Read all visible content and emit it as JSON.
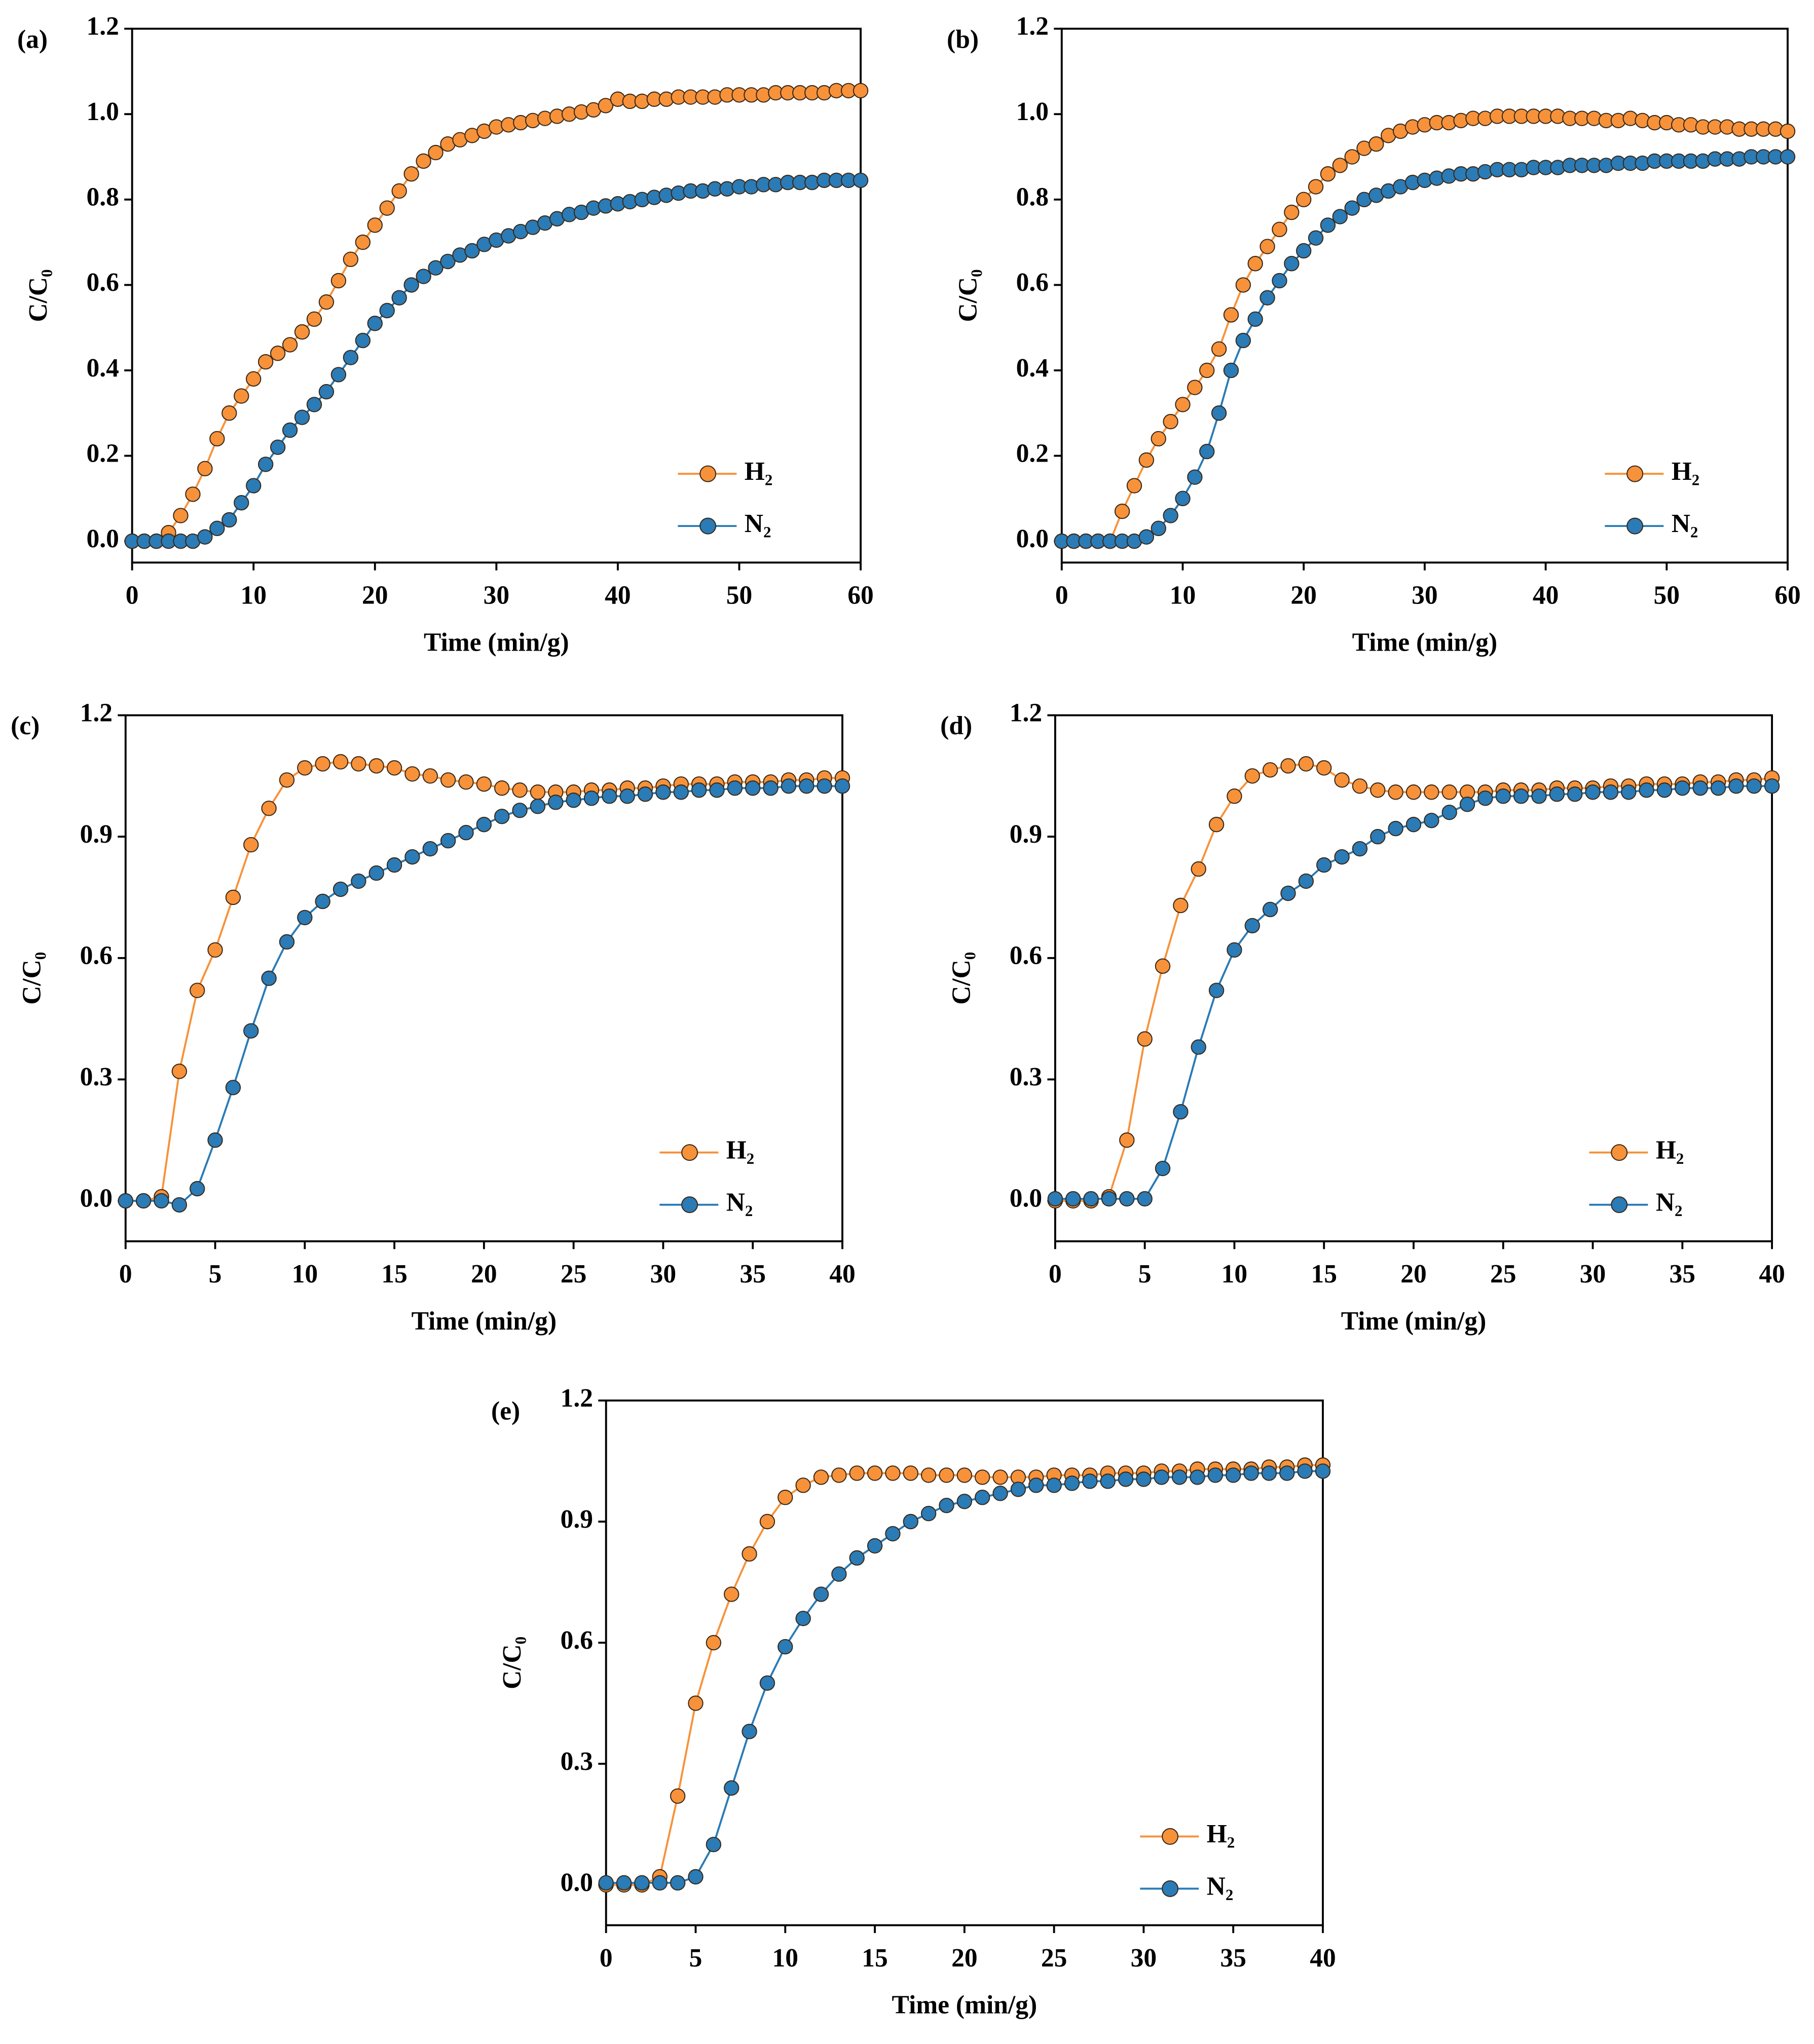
{
  "chart_data": [
    {
      "type": "line",
      "label": "(a)",
      "xlabel": "Time (min/g)",
      "ylabel": "C/C₀",
      "x": [
        0,
        1,
        2,
        3,
        4,
        5,
        6,
        7,
        8,
        9,
        10,
        11,
        12,
        13,
        14,
        15,
        16,
        17,
        18,
        19,
        20,
        21,
        22,
        23,
        24,
        25,
        26,
        27,
        28,
        29,
        30,
        31,
        32,
        33,
        34,
        35,
        36,
        37,
        38,
        39,
        40,
        41,
        42,
        43,
        44,
        45,
        46,
        47,
        48,
        49,
        50,
        51,
        52,
        53,
        54,
        55,
        56,
        57,
        58,
        59,
        60
      ],
      "series": [
        {
          "name": "H₂",
          "color": "#f7923a",
          "values": [
            0,
            0,
            0,
            0.02,
            0.06,
            0.11,
            0.17,
            0.24,
            0.3,
            0.34,
            0.38,
            0.42,
            0.44,
            0.46,
            0.49,
            0.52,
            0.56,
            0.61,
            0.66,
            0.7,
            0.74,
            0.78,
            0.82,
            0.86,
            0.89,
            0.91,
            0.93,
            0.94,
            0.95,
            0.96,
            0.97,
            0.975,
            0.98,
            0.985,
            0.99,
            0.995,
            1.0,
            1.005,
            1.01,
            1.02,
            1.035,
            1.03,
            1.03,
            1.035,
            1.035,
            1.04,
            1.04,
            1.04,
            1.04,
            1.045,
            1.045,
            1.045,
            1.045,
            1.05,
            1.05,
            1.05,
            1.05,
            1.05,
            1.055,
            1.055,
            1.055
          ]
        },
        {
          "name": "N₂",
          "color": "#2a7bb6",
          "values": [
            0,
            0,
            0,
            0,
            0,
            0,
            0.01,
            0.03,
            0.05,
            0.09,
            0.13,
            0.18,
            0.22,
            0.26,
            0.29,
            0.32,
            0.35,
            0.39,
            0.43,
            0.47,
            0.51,
            0.54,
            0.57,
            0.6,
            0.62,
            0.64,
            0.655,
            0.67,
            0.68,
            0.695,
            0.705,
            0.715,
            0.725,
            0.735,
            0.745,
            0.755,
            0.765,
            0.77,
            0.78,
            0.785,
            0.79,
            0.795,
            0.8,
            0.805,
            0.81,
            0.815,
            0.82,
            0.82,
            0.825,
            0.825,
            0.83,
            0.83,
            0.835,
            0.835,
            0.84,
            0.84,
            0.84,
            0.845,
            0.845,
            0.845,
            0.845
          ]
        }
      ],
      "xlim": [
        0,
        60
      ],
      "ylim": [
        -0.05,
        1.2
      ],
      "xticks": [
        0,
        10,
        20,
        30,
        40,
        50,
        60
      ],
      "yticks": [
        {
          "value": 0,
          "label": "0.0"
        },
        0.2,
        0.4,
        0.6,
        0.8,
        {
          "value": 1,
          "label": "1.0"
        },
        1.2
      ]
    },
    {
      "type": "line",
      "label": "(b)",
      "xlabel": "Time (min/g)",
      "ylabel": "C/C₀",
      "x": [
        0,
        1,
        2,
        3,
        4,
        5,
        6,
        7,
        8,
        9,
        10,
        11,
        12,
        13,
        14,
        15,
        16,
        17,
        18,
        19,
        20,
        21,
        22,
        23,
        24,
        25,
        26,
        27,
        28,
        29,
        30,
        31,
        32,
        33,
        34,
        35,
        36,
        37,
        38,
        39,
        40,
        41,
        42,
        43,
        44,
        45,
        46,
        47,
        48,
        49,
        50,
        51,
        52,
        53,
        54,
        55,
        56,
        57,
        58,
        59,
        60
      ],
      "series": [
        {
          "name": "H₂",
          "color": "#f7923a",
          "values": [
            0,
            0,
            0,
            0,
            0,
            0.07,
            0.13,
            0.19,
            0.24,
            0.28,
            0.32,
            0.36,
            0.4,
            0.45,
            0.53,
            0.6,
            0.65,
            0.69,
            0.73,
            0.77,
            0.8,
            0.83,
            0.86,
            0.88,
            0.9,
            0.92,
            0.93,
            0.95,
            0.96,
            0.97,
            0.975,
            0.98,
            0.98,
            0.985,
            0.99,
            0.99,
            0.995,
            0.995,
            0.995,
            0.995,
            0.995,
            0.995,
            0.99,
            0.99,
            0.99,
            0.985,
            0.985,
            0.99,
            0.985,
            0.98,
            0.98,
            0.975,
            0.975,
            0.97,
            0.97,
            0.97,
            0.965,
            0.965,
            0.965,
            0.965,
            0.96
          ]
        },
        {
          "name": "N₂",
          "color": "#2a7bb6",
          "values": [
            0,
            0,
            0,
            0,
            0,
            0,
            0,
            0.01,
            0.03,
            0.06,
            0.1,
            0.15,
            0.21,
            0.3,
            0.4,
            0.47,
            0.52,
            0.57,
            0.61,
            0.65,
            0.68,
            0.71,
            0.74,
            0.76,
            0.78,
            0.8,
            0.81,
            0.82,
            0.83,
            0.84,
            0.845,
            0.85,
            0.855,
            0.86,
            0.86,
            0.865,
            0.87,
            0.87,
            0.87,
            0.875,
            0.875,
            0.875,
            0.88,
            0.88,
            0.88,
            0.88,
            0.885,
            0.885,
            0.885,
            0.89,
            0.89,
            0.89,
            0.89,
            0.89,
            0.895,
            0.895,
            0.895,
            0.9,
            0.9,
            0.9,
            0.9
          ]
        }
      ],
      "xlim": [
        0,
        60
      ],
      "ylim": [
        -0.05,
        1.2
      ],
      "xticks": [
        0,
        10,
        20,
        30,
        40,
        50,
        60
      ],
      "yticks": [
        {
          "value": 0,
          "label": "0.0"
        },
        0.2,
        0.4,
        0.6,
        0.8,
        {
          "value": 1,
          "label": "1.0"
        },
        1.2
      ]
    },
    {
      "type": "line",
      "label": "(c)",
      "xlabel": "Time (min/g)",
      "ylabel": "C/C₀",
      "x": [
        0,
        1,
        2,
        3,
        4,
        5,
        6,
        7,
        8,
        9,
        10,
        11,
        12,
        13,
        14,
        15,
        16,
        17,
        18,
        19,
        20,
        21,
        22,
        23,
        24,
        25,
        26,
        27,
        28,
        29,
        30,
        31,
        32,
        33,
        34,
        35,
        36,
        37,
        38,
        39,
        40
      ],
      "series": [
        {
          "name": "H₂",
          "color": "#f7923a",
          "values": [
            0,
            0,
            0.01,
            0.32,
            0.52,
            0.62,
            0.75,
            0.88,
            0.97,
            1.04,
            1.07,
            1.08,
            1.085,
            1.08,
            1.075,
            1.07,
            1.055,
            1.05,
            1.04,
            1.035,
            1.03,
            1.02,
            1.015,
            1.01,
            1.01,
            1.01,
            1.015,
            1.015,
            1.02,
            1.02,
            1.025,
            1.03,
            1.03,
            1.03,
            1.035,
            1.035,
            1.035,
            1.04,
            1.04,
            1.045,
            1.045
          ]
        },
        {
          "name": "N₂",
          "color": "#2a7bb6",
          "values": [
            0,
            0,
            0,
            -0.01,
            0.03,
            0.15,
            0.28,
            0.42,
            0.55,
            0.64,
            0.7,
            0.74,
            0.77,
            0.79,
            0.81,
            0.83,
            0.85,
            0.87,
            0.89,
            0.91,
            0.93,
            0.95,
            0.965,
            0.975,
            0.985,
            0.99,
            0.995,
            1.0,
            1.0,
            1.005,
            1.01,
            1.01,
            1.015,
            1.015,
            1.02,
            1.02,
            1.02,
            1.025,
            1.025,
            1.025,
            1.025
          ]
        }
      ],
      "xlim": [
        0,
        40
      ],
      "ylim": [
        -0.1,
        1.2
      ],
      "xticks": [
        0,
        5,
        10,
        15,
        20,
        25,
        30,
        35,
        40
      ],
      "yticks": [
        {
          "value": 0,
          "label": "0.0"
        },
        0.3,
        0.6,
        0.9,
        1.2
      ]
    },
    {
      "type": "line",
      "label": "(d)",
      "xlabel": "Time (min/g)",
      "ylabel": "C/C₀",
      "x": [
        0,
        1,
        2,
        3,
        4,
        5,
        6,
        7,
        8,
        9,
        10,
        11,
        12,
        13,
        14,
        15,
        16,
        17,
        18,
        19,
        20,
        21,
        22,
        23,
        24,
        25,
        26,
        27,
        28,
        29,
        30,
        31,
        32,
        33,
        34,
        35,
        36,
        37,
        38,
        39,
        40
      ],
      "series": [
        {
          "name": "H₂",
          "color": "#f7923a",
          "values": [
            0,
            0,
            0,
            0.01,
            0.15,
            0.4,
            0.58,
            0.73,
            0.82,
            0.93,
            1.0,
            1.05,
            1.065,
            1.075,
            1.08,
            1.07,
            1.04,
            1.025,
            1.015,
            1.01,
            1.01,
            1.01,
            1.01,
            1.01,
            1.01,
            1.015,
            1.015,
            1.015,
            1.02,
            1.02,
            1.02,
            1.025,
            1.025,
            1.03,
            1.03,
            1.03,
            1.035,
            1.035,
            1.04,
            1.04,
            1.045
          ]
        },
        {
          "name": "N₂",
          "color": "#2a7bb6",
          "values": [
            0.005,
            0.005,
            0.005,
            0.005,
            0.005,
            0.005,
            0.08,
            0.22,
            0.38,
            0.52,
            0.62,
            0.68,
            0.72,
            0.76,
            0.79,
            0.83,
            0.85,
            0.87,
            0.9,
            0.92,
            0.93,
            0.94,
            0.96,
            0.98,
            0.995,
            1.0,
            1.0,
            1.0,
            1.005,
            1.005,
            1.01,
            1.01,
            1.01,
            1.015,
            1.015,
            1.02,
            1.02,
            1.02,
            1.025,
            1.025,
            1.025
          ]
        }
      ],
      "xlim": [
        0,
        40
      ],
      "ylim": [
        -0.1,
        1.2
      ],
      "xticks": [
        0,
        5,
        10,
        15,
        20,
        25,
        30,
        35,
        40
      ],
      "yticks": [
        {
          "value": 0,
          "label": "0.0"
        },
        0.3,
        0.6,
        0.9,
        1.2
      ]
    },
    {
      "type": "line",
      "label": "(e)",
      "xlabel": "Time (min/g)",
      "ylabel": "C/C₀",
      "x": [
        0,
        1,
        2,
        3,
        4,
        5,
        6,
        7,
        8,
        9,
        10,
        11,
        12,
        13,
        14,
        15,
        16,
        17,
        18,
        19,
        20,
        21,
        22,
        23,
        24,
        25,
        26,
        27,
        28,
        29,
        30,
        31,
        32,
        33,
        34,
        35,
        36,
        37,
        38,
        39,
        40
      ],
      "series": [
        {
          "name": "H₂",
          "color": "#f7923a",
          "values": [
            0,
            0,
            0,
            0.02,
            0.22,
            0.45,
            0.6,
            0.72,
            0.82,
            0.9,
            0.96,
            0.99,
            1.01,
            1.015,
            1.02,
            1.02,
            1.02,
            1.02,
            1.015,
            1.015,
            1.015,
            1.01,
            1.01,
            1.01,
            1.01,
            1.015,
            1.015,
            1.015,
            1.02,
            1.02,
            1.02,
            1.025,
            1.025,
            1.03,
            1.03,
            1.03,
            1.03,
            1.035,
            1.035,
            1.04,
            1.04
          ]
        },
        {
          "name": "N₂",
          "color": "#2a7bb6",
          "values": [
            0.005,
            0.005,
            0.005,
            0.005,
            0.005,
            0.02,
            0.1,
            0.24,
            0.38,
            0.5,
            0.59,
            0.66,
            0.72,
            0.77,
            0.81,
            0.84,
            0.87,
            0.9,
            0.92,
            0.94,
            0.95,
            0.96,
            0.97,
            0.98,
            0.99,
            0.99,
            0.995,
            1.0,
            1.0,
            1.005,
            1.005,
            1.01,
            1.01,
            1.01,
            1.015,
            1.015,
            1.02,
            1.02,
            1.02,
            1.025,
            1.025
          ]
        }
      ],
      "xlim": [
        0,
        40
      ],
      "ylim": [
        -0.1,
        1.2
      ],
      "xticks": [
        0,
        5,
        10,
        15,
        20,
        25,
        30,
        35,
        40
      ],
      "yticks": [
        {
          "value": 0,
          "label": "0.0"
        },
        0.3,
        0.6,
        0.9,
        1.2
      ]
    }
  ]
}
